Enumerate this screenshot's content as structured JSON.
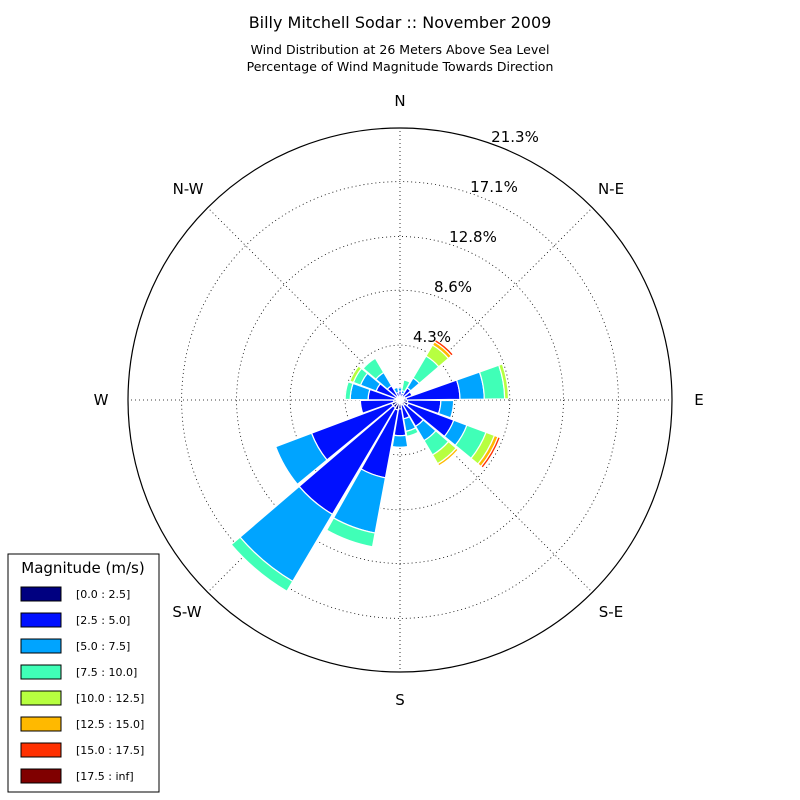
{
  "chart_data": {
    "type": "windrose",
    "title": "Billy Mitchell Sodar :: November 2009",
    "subtitle_lines": [
      "Wind Distribution at 26 Meters Above Sea Level",
      "Percentage of Wind Magnitude Towards Direction"
    ],
    "directions": [
      "N",
      "N-E",
      "E",
      "S-E",
      "S",
      "S-W",
      "W",
      "N-W"
    ],
    "rings": [
      {
        "value": 4.3,
        "label": "4.3%"
      },
      {
        "value": 8.6,
        "label": "8.6%"
      },
      {
        "value": 12.8,
        "label": "12.8%"
      },
      {
        "value": 17.1,
        "label": "17.1%"
      },
      {
        "value": 21.3,
        "label": "21.3%"
      }
    ],
    "rmax": 21.3,
    "legend": {
      "title": "Magnitude (m/s)",
      "bins": [
        {
          "label": "[0.0 : 2.5]",
          "color": "#000080"
        },
        {
          "label": "[2.5 : 5.0]",
          "color": "#0010ff"
        },
        {
          "label": "[5.0 : 7.5]",
          "color": "#00a4ff"
        },
        {
          "label": "[7.5 : 10.0]",
          "color": "#40ffb7"
        },
        {
          "label": "[10.0 : 12.5]",
          "color": "#b7ff40"
        },
        {
          "label": "[12.5 : 15.0]",
          "color": "#ffb900"
        },
        {
          "label": "[15.0 : 17.5]",
          "color": "#ff3000"
        },
        {
          "label": "[17.5 : inf]",
          "color": "#800000"
        }
      ]
    },
    "sector_width_deg": 20,
    "sectors": [
      {
        "dir": 0,
        "cum": [
          0.3,
          0.7,
          0.95
        ]
      },
      {
        "dir": 20,
        "cum": [
          0.2,
          0.55,
          0.75,
          1.6
        ]
      },
      {
        "dir": 40,
        "cum": [
          0.3,
          1.1,
          2.0,
          4.0,
          5.0,
          5.3,
          5.5
        ]
      },
      {
        "dir": 60,
        "cum": [
          0.4,
          1.0
        ]
      },
      {
        "dir": 80,
        "cum": [
          0.5,
          4.7,
          6.6,
          8.2,
          8.5
        ]
      },
      {
        "dir": 100,
        "cum": [
          0.6,
          3.2,
          4.2
        ]
      },
      {
        "dir": 120,
        "cum": [
          0.7,
          4.5,
          5.6,
          7.2,
          7.9,
          8.2,
          8.4
        ]
      },
      {
        "dir": 140,
        "cum": [
          0.5,
          2.4,
          3.7,
          5.0,
          5.8,
          6.0
        ]
      },
      {
        "dir": 160,
        "cum": [
          0.4,
          1.5,
          2.5,
          2.9
        ]
      },
      {
        "dir": 180,
        "cum": [
          0.7,
          2.8,
          3.7
        ]
      },
      {
        "dir": 200,
        "cum": [
          0.8,
          6.2,
          10.6,
          11.7
        ]
      },
      {
        "dir": 220,
        "cum": [
          0.7,
          10.4,
          16.5,
          17.4
        ]
      },
      {
        "dir": 240,
        "cum": [
          0.7,
          7.4,
          10.4
        ]
      },
      {
        "dir": 260,
        "cum": [
          0.5,
          3.1
        ]
      },
      {
        "dir": 280,
        "cum": [
          0.4,
          2.5,
          3.9,
          4.3
        ]
      },
      {
        "dir": 300,
        "cum": [
          0.3,
          2.0,
          3.3,
          3.9,
          4.2
        ]
      },
      {
        "dir": 320,
        "cum": [
          0.3,
          1.3,
          2.5,
          3.8
        ]
      },
      {
        "dir": 340,
        "cum": [
          0.2,
          0.6,
          1.0
        ]
      }
    ]
  }
}
